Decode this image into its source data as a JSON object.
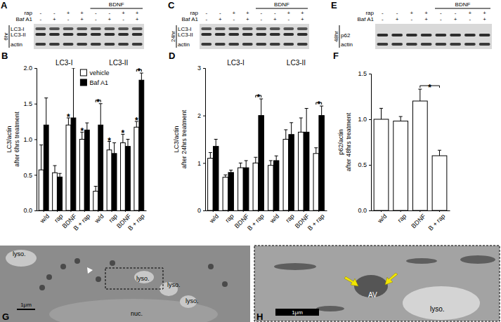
{
  "chart_data": [
    {
      "panel": "B",
      "type": "bar",
      "ylabel": [
        "LC3/actin",
        "after 6hrs treatment"
      ],
      "categories": [
        "w/d",
        "rap",
        "BDNF",
        "B + rap",
        "w/d",
        "rap",
        "BDNF",
        "B + rap"
      ],
      "groups": [
        {
          "label": "LC3-I",
          "count": 4
        },
        {
          "label": "LC3-II",
          "count": 4
        }
      ],
      "series": [
        {
          "name": "vehicle",
          "color": "#ffffff",
          "values": [
            0.57,
            0.53,
            1.2,
            1.0,
            0.27,
            0.85,
            0.95,
            1.17
          ],
          "errors": [
            0.35,
            0.1,
            0.1,
            0.1,
            0.07,
            0.12,
            0.12,
            0.08
          ]
        },
        {
          "name": "Baf A1",
          "color": "#000000",
          "values": [
            1.2,
            0.47,
            1.3,
            1.13,
            1.2,
            0.8,
            0.9,
            1.83
          ],
          "errors": [
            0.38,
            0.05,
            0.7,
            0.1,
            0.3,
            0.15,
            0.1,
            0.1
          ]
        }
      ],
      "ylim": [
        0,
        2
      ],
      "yticks": [
        {
          "value": 0,
          "label": "0.0"
        },
        {
          "value": 0.5,
          "label": "0.5"
        },
        {
          "value": 1,
          "label": "1.0"
        },
        {
          "value": 1.5,
          "label": "1.5"
        },
        {
          "value": 2,
          "label": "2.0"
        }
      ],
      "legend": "upper center",
      "annotations": [
        {
          "text": "*",
          "from": [
            2,
            0
          ],
          "to": [
            2,
            0
          ]
        },
        {
          "text": "*",
          "from": [
            3,
            0
          ],
          "to": [
            3,
            0
          ]
        },
        {
          "text": "*",
          "from": [
            4,
            0
          ],
          "to": [
            4,
            1
          ]
        },
        {
          "text": "*",
          "from": [
            5,
            0
          ],
          "to": [
            5,
            0
          ]
        },
        {
          "text": "*",
          "from": [
            6,
            0
          ],
          "to": [
            6,
            0
          ]
        },
        {
          "text": "*",
          "from": [
            7,
            0
          ],
          "to": [
            7,
            0
          ]
        },
        {
          "text": "*",
          "from": [
            7,
            0
          ],
          "to": [
            7,
            1
          ]
        }
      ]
    },
    {
      "panel": "D",
      "type": "bar",
      "ylabel": [
        "LC3/actin",
        "after 24hrs treatment"
      ],
      "categories": [
        "w/d",
        "rap",
        "BDNF",
        "B + rap",
        "w/d",
        "rap",
        "BDNF",
        "B + rap"
      ],
      "groups": [
        {
          "label": "LC3-I",
          "count": 4
        },
        {
          "label": "LC3-II",
          "count": 4
        }
      ],
      "series": [
        {
          "color": "#ffffff",
          "values": [
            1.1,
            0.7,
            0.9,
            1.0,
            0.95,
            1.5,
            1.65,
            1.2
          ],
          "errors": [
            0.12,
            0.05,
            0.1,
            0.12,
            0.1,
            0.2,
            0.3,
            0.12
          ]
        },
        {
          "color": "#000000",
          "values": [
            1.35,
            0.8,
            0.9,
            2.0,
            1.05,
            1.6,
            1.65,
            2.0
          ],
          "errors": [
            0.15,
            0.05,
            0.15,
            0.35,
            0.1,
            0.25,
            0.5,
            0.2
          ]
        }
      ],
      "ylim": [
        0,
        3
      ],
      "yticks": [
        0,
        1,
        2,
        3
      ],
      "annotations": [
        {
          "text": "*",
          "from": [
            3,
            0
          ],
          "to": [
            3,
            1
          ]
        },
        {
          "text": "*",
          "from": [
            7,
            0
          ],
          "to": [
            7,
            1
          ]
        }
      ]
    },
    {
      "panel": "F",
      "type": "bar",
      "ylabel": [
        "p62/actin",
        "after 48hrs treatment"
      ],
      "categories": [
        "w/d",
        "rap",
        "BDNF",
        "B + rap"
      ],
      "series": [
        {
          "color": "#ffffff",
          "values": [
            1.0,
            0.98,
            1.2,
            0.6
          ],
          "errors": [
            0.12,
            0.05,
            0.13,
            0.06
          ]
        }
      ],
      "ylim": [
        0,
        1.5
      ],
      "yticks": [
        {
          "value": 0,
          "label": "0.0"
        },
        {
          "value": 0.5,
          "label": "0.5"
        },
        {
          "value": 1,
          "label": "1.0"
        },
        {
          "value": 1.5,
          "label": "1.5"
        }
      ],
      "annotations": [
        {
          "text": "*",
          "from": [
            2,
            0
          ],
          "to": [
            3,
            0
          ]
        }
      ]
    }
  ],
  "blots": [
    {
      "panel": "A",
      "time": "6hr",
      "bracket": {
        "label": "BDNF",
        "lanes": [
          4,
          7
        ]
      },
      "rows": [
        {
          "label": "rap",
          "signs": [
            "-",
            "-",
            "+",
            "+",
            "-",
            "-",
            "+",
            "+"
          ]
        },
        {
          "label": "Baf A1",
          "signs": [
            "-",
            "+",
            "-",
            "+",
            "-",
            "+",
            "-",
            "+"
          ]
        }
      ],
      "bands": [
        "LC3-I",
        "LC3-II",
        "actin"
      ]
    },
    {
      "panel": "C",
      "time": "24hr",
      "bracket": {
        "label": "BDNF",
        "lanes": [
          4,
          7
        ]
      },
      "rows": [
        {
          "label": "rap",
          "signs": [
            "-",
            "-",
            "+",
            "+",
            "-",
            "-",
            "+",
            "+"
          ]
        },
        {
          "label": "Baf A1",
          "signs": [
            "-",
            "+",
            "-",
            "+",
            "-",
            "+",
            "-",
            "+"
          ]
        }
      ],
      "bands": [
        "LC3-I",
        "LC3-II",
        "actin"
      ]
    },
    {
      "panel": "E",
      "time": "48hr",
      "bracket": {
        "label": "BDNF",
        "lanes": [
          4,
          7
        ]
      },
      "rows": [
        {
          "label": "rap",
          "signs": [
            "-",
            "-",
            "+",
            "+",
            "-",
            "-",
            "+",
            "+"
          ]
        },
        {
          "label": "Baf A1",
          "signs": [
            "-",
            "+",
            "-",
            "+",
            "-",
            "+",
            "-",
            "+"
          ]
        }
      ],
      "bands": [
        "p62",
        "actin"
      ]
    }
  ],
  "micrographs": [
    {
      "panel": "G",
      "labels": [
        "lyso.",
        "lyso.",
        "lyso.",
        "lyso.",
        "nuc."
      ],
      "scale_bar": "1μm"
    },
    {
      "panel": "H",
      "labels": [
        "AV",
        "lyso."
      ],
      "scale_bar": "1μm"
    }
  ]
}
